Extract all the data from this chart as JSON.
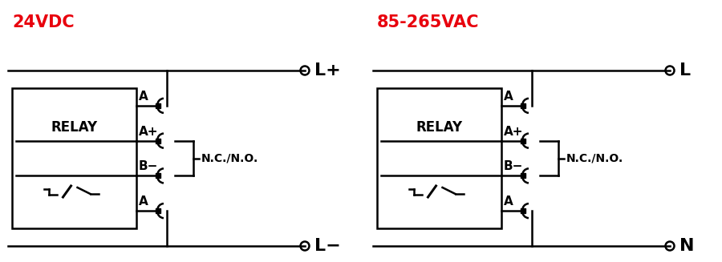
{
  "bg_color": "#ffffff",
  "line_color": "#000000",
  "red_color": "#e8000d",
  "title1": "24VDC",
  "title2": "85-265VAC",
  "label1_top": "L+",
  "label1_bot": "L−",
  "label2_top": "L",
  "label2_bot": "N",
  "relay_label": "RELAY",
  "nc_no_label": "N.C./N.O.",
  "terminal_labels": [
    "A",
    "A+",
    "B−",
    "A"
  ],
  "title_fontsize": 15,
  "label_fontsize": 16,
  "term_fontsize": 11,
  "relay_fontsize": 12,
  "ncno_fontsize": 10
}
